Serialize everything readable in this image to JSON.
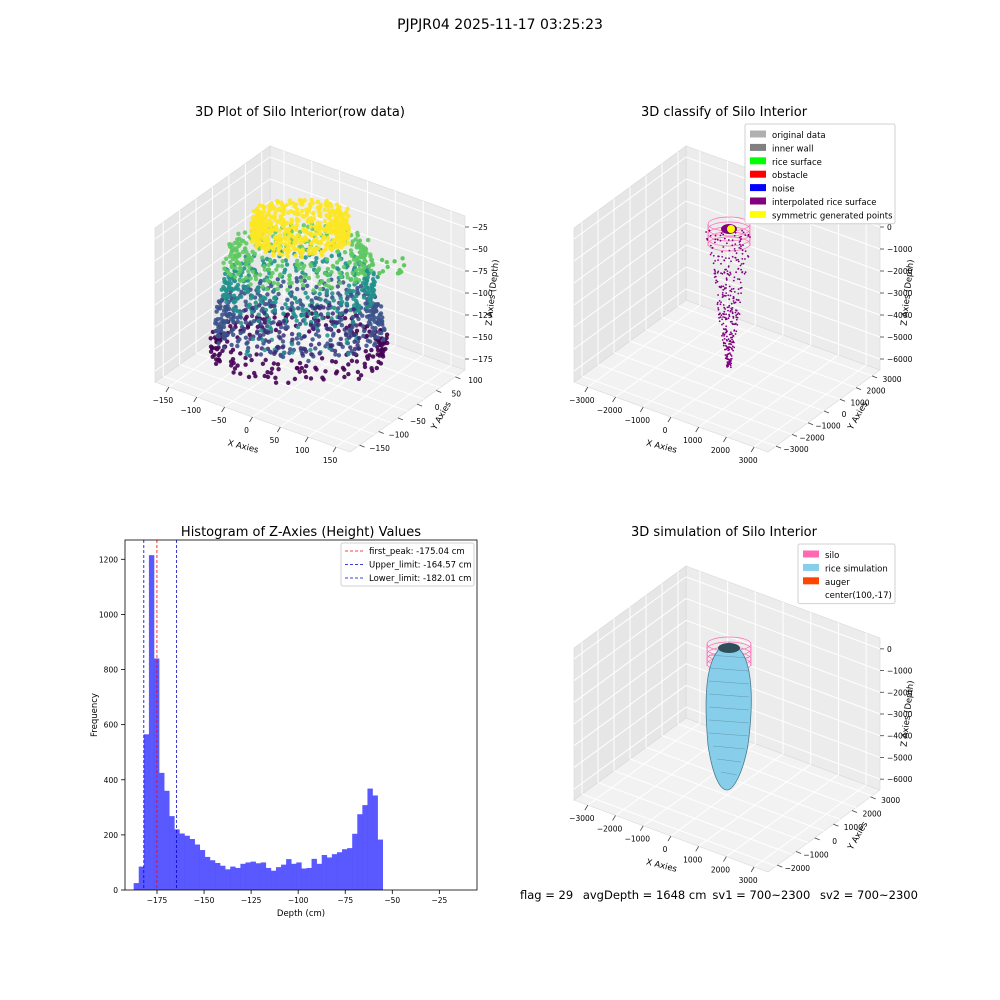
{
  "figure": {
    "suptitle": "PJPJR04 2025-11-17 03:25:23",
    "status": {
      "flag": "flag = 29",
      "avg_depth": "avgDepth = 1648 cm",
      "sv1": "sv1 = 700~2300",
      "sv2": "sv2 = 700~2300"
    }
  },
  "colors": {
    "hist_bar": "#5050ff",
    "first_peak": "#ff0000",
    "limits": "#0000cc",
    "original_data": "#b0b0b0",
    "inner_wall": "#808080",
    "rice_surface": "#00ff00",
    "obstacle": "#ff0000",
    "noise": "#0000ff",
    "interpolated_rice_surface": "#800080",
    "symmetric_generated_points": "#ffff00",
    "silo": "#ff69b4",
    "rice_simulation": "#87ceeb",
    "auger": "#ff4500"
  },
  "chart_data": [
    {
      "type": "scatter",
      "projection": "3d",
      "title": "3D Plot of Silo Interior(row data)",
      "xlabel": "X Axies",
      "ylabel": "Y Axies",
      "zlabel": "Z Axies (Depth)",
      "xticks": [
        "−150",
        "−100",
        "−50",
        "0",
        "50",
        "100",
        "150"
      ],
      "yticks": [
        "−150",
        "−100",
        "−50",
        "0",
        "50",
        "100"
      ],
      "zticks": [
        "−25",
        "−50",
        "−75",
        "−100",
        "−125",
        "−150",
        "−175"
      ],
      "xlim": [
        -150,
        150
      ],
      "ylim": [
        -150,
        120
      ],
      "zlim": [
        -190,
        -10
      ],
      "colormap": "viridis"
    },
    {
      "type": "scatter",
      "projection": "3d",
      "title": "3D classify of Silo Interior",
      "xlabel": "X Axies",
      "ylabel": "Y Axies",
      "zlabel": "Z Axies (Depth)",
      "xticks": [
        "−3000",
        "−2000",
        "−1000",
        "0",
        "1000",
        "2000",
        "3000"
      ],
      "yticks": [
        "−3000",
        "−2000",
        "−1000",
        "0",
        "1000",
        "2000",
        "3000"
      ],
      "zticks": [
        "0",
        "−1000",
        "−2000",
        "−3000",
        "−4000",
        "−5000",
        "−6000"
      ],
      "legend": [
        {
          "label": "original data",
          "color": "#b0b0b0"
        },
        {
          "label": "inner wall",
          "color": "#808080"
        },
        {
          "label": "rice surface",
          "color": "#00ff00"
        },
        {
          "label": "obstacle",
          "color": "#ff0000"
        },
        {
          "label": "noise",
          "color": "#0000ff"
        },
        {
          "label": "interpolated rice surface",
          "color": "#800080"
        },
        {
          "label": "symmetric generated points",
          "color": "#ffff00"
        }
      ],
      "legend_position": "top-right"
    },
    {
      "type": "bar",
      "title": "Histogram of Z-Axies (Height) Values",
      "xlabel": "Depth (cm)",
      "ylabel": "Frequency",
      "xlim": [
        -192,
        -5
      ],
      "ylim": [
        0,
        1270
      ],
      "xticks": [
        -175,
        -150,
        -125,
        -100,
        -75,
        -50,
        -25
      ],
      "xtick_labels": [
        "−175",
        "−150",
        "−125",
        "−100",
        "−75",
        "−50",
        "−25"
      ],
      "yticks": [
        0,
        200,
        400,
        600,
        800,
        1000,
        1200
      ],
      "bin_width": 2.7,
      "bin_start": -187.4,
      "values": [
        25,
        85,
        565,
        1215,
        840,
        425,
        360,
        268,
        220,
        205,
        197,
        185,
        165,
        145,
        120,
        108,
        98,
        88,
        75,
        85,
        80,
        95,
        100,
        103,
        97,
        100,
        80,
        70,
        83,
        92,
        112,
        95,
        100,
        78,
        80,
        113,
        95,
        127,
        118,
        130,
        137,
        148,
        152,
        204,
        275,
        308,
        368,
        343,
        183
      ],
      "vlines": [
        {
          "label": "first_peak: -175.04 cm",
          "x": -175.04,
          "color": "#ff0000"
        },
        {
          "label": "Upper_limit: -164.57 cm",
          "x": -164.57,
          "color": "#0000cc"
        },
        {
          "label": "Lower_limit: -182.01 cm",
          "x": -182.01,
          "color": "#0000cc"
        }
      ],
      "legend_position": "top-right"
    },
    {
      "type": "scatter",
      "projection": "3d",
      "title": "3D simulation of Silo Interior",
      "xlabel": "X Axies",
      "ylabel": "Y Axies",
      "zlabel": "Z Axies (Depth)",
      "xticks": [
        "−3000",
        "−2000",
        "−1000",
        "0",
        "1000",
        "2000",
        "3000"
      ],
      "yticks": [
        "−2000",
        "−1000",
        "0",
        "1000",
        "2000",
        "3000"
      ],
      "zticks": [
        "0",
        "−1000",
        "−2000",
        "−3000",
        "−4000",
        "−5000",
        "−6000"
      ],
      "legend": [
        {
          "label": "silo",
          "color": "#ff69b4"
        },
        {
          "label": "rice simulation",
          "color": "#87ceeb"
        },
        {
          "label": "auger",
          "color": "#ff4500"
        },
        {
          "label": "center(100,-17)",
          "color": ""
        }
      ],
      "legend_position": "top-right"
    }
  ]
}
